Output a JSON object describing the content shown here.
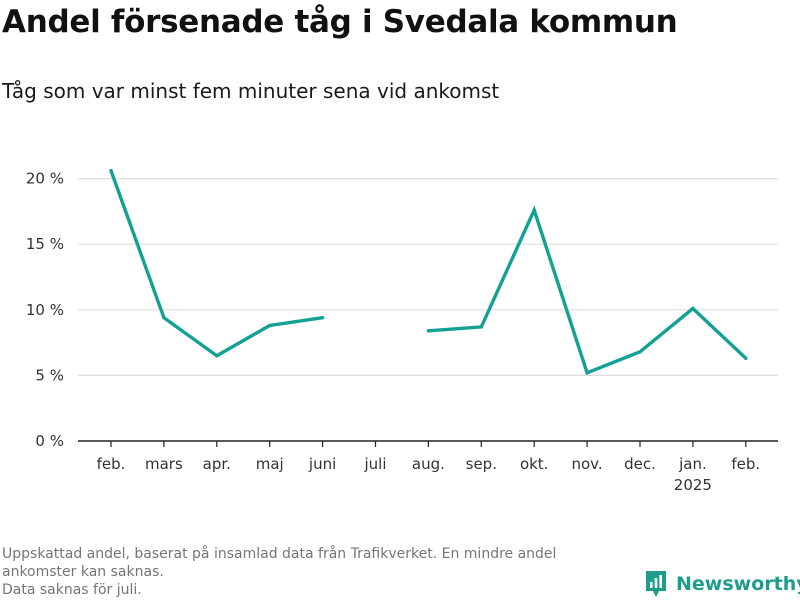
{
  "title": "Andel försenade tåg i Svedala kommun",
  "subtitle": "Tåg som var minst fem minuter sena vid ankomst",
  "footnote": {
    "line1": "Uppskattad andel, baserat på insamlad data från Trafikverket. En mindre andel",
    "line2": "ankomster kan saknas.",
    "line3": "Data saknas för juli."
  },
  "brand": {
    "name": "Newsworthy",
    "color": "#1e9c8c",
    "icon": "newsworthy-logo-icon"
  },
  "colors": {
    "line": "#12a194",
    "grid": "#dddddd",
    "axis": "#222222"
  },
  "chart_data": {
    "type": "line",
    "title": "Andel försenade tåg i Svedala kommun",
    "subtitle": "Tåg som var minst fem minuter sena vid ankomst",
    "xlabel": "",
    "ylabel": "",
    "categories": [
      "feb.",
      "mars",
      "apr.",
      "maj",
      "juni",
      "juli",
      "aug.",
      "sep.",
      "okt.",
      "nov.",
      "dec.",
      "jan.",
      "feb."
    ],
    "category_sublabels": [
      "",
      "",
      "",
      "",
      "",
      "",
      "",
      "",
      "",
      "",
      "",
      "2025",
      ""
    ],
    "series": [
      {
        "values": [
          20.6,
          9.4,
          6.5,
          8.8,
          9.4,
          null,
          8.4,
          8.7,
          17.6,
          5.2,
          6.8,
          10.1,
          6.3
        ]
      }
    ],
    "ylim": [
      0,
      22
    ],
    "yticks": [
      0,
      5,
      10,
      15,
      20
    ],
    "ytick_labels": [
      "0 %",
      "5 %",
      "10 %",
      "15 %",
      "20 %"
    ],
    "grid": true,
    "legend": "none"
  }
}
